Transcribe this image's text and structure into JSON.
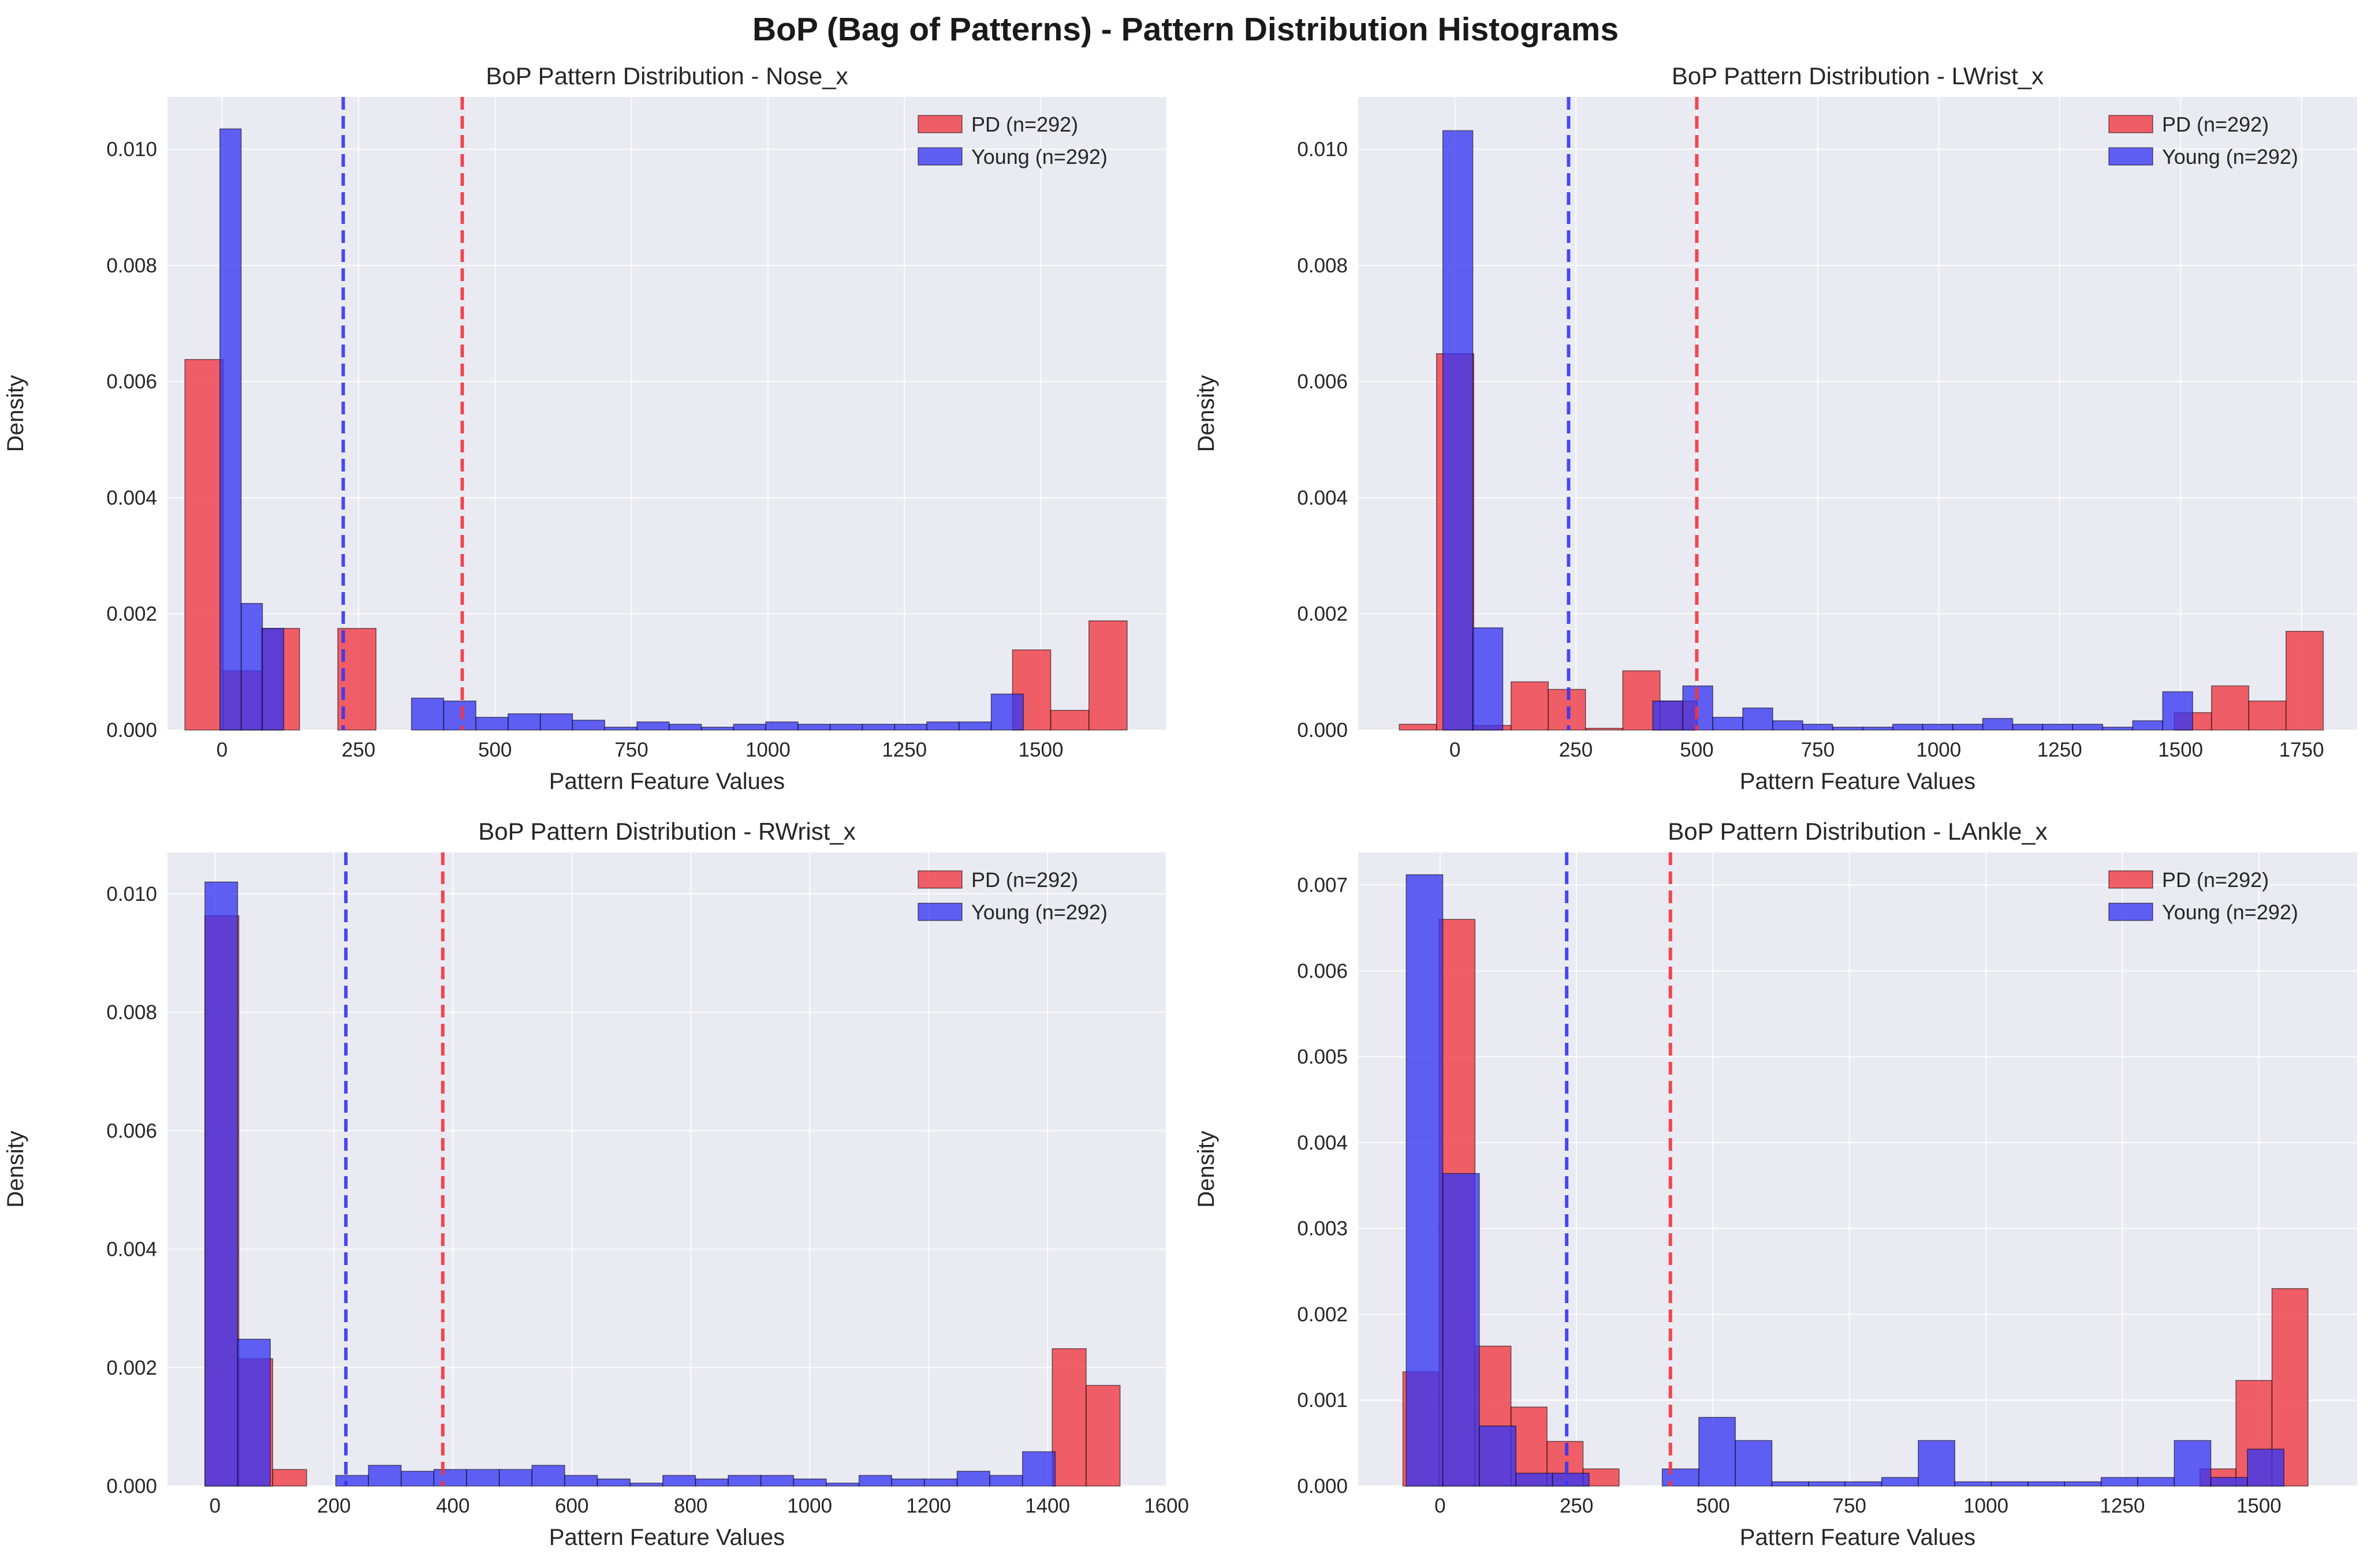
{
  "suptitle": "BoP (Bag of Patterns) - Pattern Distribution Histograms",
  "colors": {
    "pd": "#f0353f",
    "young": "#3636f2",
    "panel_bg": "#eaeaf2",
    "grid": "#ffffff"
  },
  "chart_data": [
    {
      "type": "histogram",
      "title": "BoP Pattern Distribution - Nose_x",
      "xlabel": "Pattern Feature Values",
      "ylabel": "Density",
      "xlim": [
        -100,
        1730
      ],
      "ylim": [
        0,
        0.0109
      ],
      "xticks": [
        0,
        250,
        500,
        750,
        1000,
        1250,
        1500
      ],
      "xtick_labels": [
        "0",
        "250",
        "500",
        "750",
        "1000",
        "1250",
        "1500"
      ],
      "yticks": [
        0,
        0.002,
        0.004,
        0.006,
        0.008,
        0.01
      ],
      "ytick_labels": [
        "0.000",
        "0.002",
        "0.004",
        "0.006",
        "0.008",
        "0.010"
      ],
      "legend": [
        "PD (n=292)",
        "Young (n=292)"
      ],
      "series": [
        {
          "name": "PD (n=292)",
          "color_key": "pd",
          "mean_line": 440,
          "bins": [
            {
              "x0": -68,
              "x1": 2,
              "h": 0.00638
            },
            {
              "x0": 2,
              "x1": 72,
              "h": 0.00102
            },
            {
              "x0": 72,
              "x1": 142,
              "h": 0.00175
            },
            {
              "x0": 212,
              "x1": 282,
              "h": 0.00175
            },
            {
              "x0": 1448,
              "x1": 1518,
              "h": 0.00138
            },
            {
              "x0": 1518,
              "x1": 1588,
              "h": 0.00034
            },
            {
              "x0": 1588,
              "x1": 1658,
              "h": 0.00188
            }
          ]
        },
        {
          "name": "Young (n=292)",
          "color_key": "young",
          "mean_line": 222,
          "bins": [
            {
              "x0": -4,
              "x1": 35,
              "h": 0.01035
            },
            {
              "x0": 35,
              "x1": 74,
              "h": 0.00218
            },
            {
              "x0": 74,
              "x1": 113,
              "h": 0.00175
            },
            {
              "x0": 347,
              "x1": 406,
              "h": 0.00055
            },
            {
              "x0": 406,
              "x1": 465,
              "h": 0.0005
            },
            {
              "x0": 465,
              "x1": 524,
              "h": 0.00022
            },
            {
              "x0": 524,
              "x1": 583,
              "h": 0.00028
            },
            {
              "x0": 583,
              "x1": 642,
              "h": 0.00028
            },
            {
              "x0": 642,
              "x1": 701,
              "h": 0.00017
            },
            {
              "x0": 701,
              "x1": 760,
              "h": 5e-05
            },
            {
              "x0": 760,
              "x1": 819,
              "h": 0.00014
            },
            {
              "x0": 819,
              "x1": 878,
              "h": 0.0001
            },
            {
              "x0": 878,
              "x1": 937,
              "h": 5e-05
            },
            {
              "x0": 937,
              "x1": 996,
              "h": 0.0001
            },
            {
              "x0": 996,
              "x1": 1055,
              "h": 0.00014
            },
            {
              "x0": 1055,
              "x1": 1114,
              "h": 0.0001
            },
            {
              "x0": 1114,
              "x1": 1173,
              "h": 0.0001
            },
            {
              "x0": 1173,
              "x1": 1232,
              "h": 0.0001
            },
            {
              "x0": 1232,
              "x1": 1291,
              "h": 0.0001
            },
            {
              "x0": 1291,
              "x1": 1350,
              "h": 0.00014
            },
            {
              "x0": 1350,
              "x1": 1409,
              "h": 0.00014
            },
            {
              "x0": 1409,
              "x1": 1468,
              "h": 0.00062
            }
          ]
        }
      ]
    },
    {
      "type": "histogram",
      "title": "BoP Pattern Distribution - LWrist_x",
      "xlabel": "Pattern Feature Values",
      "ylabel": "Density",
      "xlim": [
        -200,
        1865
      ],
      "ylim": [
        0,
        0.0109
      ],
      "xticks": [
        0,
        250,
        500,
        750,
        1000,
        1250,
        1500,
        1750
      ],
      "xtick_labels": [
        "0",
        "250",
        "500",
        "750",
        "1000",
        "1250",
        "1500",
        "1750"
      ],
      "yticks": [
        0,
        0.002,
        0.004,
        0.006,
        0.008,
        0.01
      ],
      "ytick_labels": [
        "0.000",
        "0.002",
        "0.004",
        "0.006",
        "0.008",
        "0.010"
      ],
      "legend": [
        "PD (n=292)",
        "Young (n=292)"
      ],
      "series": [
        {
          "name": "PD (n=292)",
          "color_key": "pd",
          "mean_line": 500,
          "bins": [
            {
              "x0": -115,
              "x1": -38,
              "h": 0.0001
            },
            {
              "x0": -38,
              "x1": 39,
              "h": 0.00648
            },
            {
              "x0": 39,
              "x1": 116,
              "h": 8e-05
            },
            {
              "x0": 116,
              "x1": 193,
              "h": 0.00083
            },
            {
              "x0": 193,
              "x1": 270,
              "h": 0.0007
            },
            {
              "x0": 270,
              "x1": 347,
              "h": 3e-05
            },
            {
              "x0": 347,
              "x1": 424,
              "h": 0.00102
            },
            {
              "x0": 424,
              "x1": 501,
              "h": 0.0005
            },
            {
              "x0": 1487,
              "x1": 1564,
              "h": 0.0003
            },
            {
              "x0": 1564,
              "x1": 1641,
              "h": 0.00076
            },
            {
              "x0": 1641,
              "x1": 1718,
              "h": 0.0005
            },
            {
              "x0": 1718,
              "x1": 1795,
              "h": 0.0017
            }
          ]
        },
        {
          "name": "Young (n=292)",
          "color_key": "young",
          "mean_line": 235,
          "bins": [
            {
              "x0": -25,
              "x1": 37,
              "h": 0.01032
            },
            {
              "x0": 37,
              "x1": 99,
              "h": 0.00176
            },
            {
              "x0": 409,
              "x1": 471,
              "h": 0.0005
            },
            {
              "x0": 471,
              "x1": 533,
              "h": 0.00076
            },
            {
              "x0": 533,
              "x1": 595,
              "h": 0.00022
            },
            {
              "x0": 595,
              "x1": 657,
              "h": 0.00038
            },
            {
              "x0": 657,
              "x1": 719,
              "h": 0.00016
            },
            {
              "x0": 719,
              "x1": 781,
              "h": 0.0001
            },
            {
              "x0": 781,
              "x1": 843,
              "h": 5e-05
            },
            {
              "x0": 843,
              "x1": 905,
              "h": 5e-05
            },
            {
              "x0": 905,
              "x1": 967,
              "h": 0.0001
            },
            {
              "x0": 967,
              "x1": 1029,
              "h": 0.0001
            },
            {
              "x0": 1029,
              "x1": 1091,
              "h": 0.0001
            },
            {
              "x0": 1091,
              "x1": 1153,
              "h": 0.0002
            },
            {
              "x0": 1153,
              "x1": 1215,
              "h": 0.0001
            },
            {
              "x0": 1215,
              "x1": 1277,
              "h": 0.0001
            },
            {
              "x0": 1277,
              "x1": 1339,
              "h": 0.0001
            },
            {
              "x0": 1339,
              "x1": 1401,
              "h": 5e-05
            },
            {
              "x0": 1401,
              "x1": 1463,
              "h": 0.00016
            },
            {
              "x0": 1463,
              "x1": 1525,
              "h": 0.00066
            }
          ]
        }
      ]
    },
    {
      "type": "histogram",
      "title": "BoP Pattern Distribution - RWrist_x",
      "xlabel": "Pattern Feature Values",
      "ylabel": "Density",
      "xlim": [
        -80,
        1600
      ],
      "ylim": [
        0,
        0.0107
      ],
      "xticks": [
        0,
        200,
        400,
        600,
        800,
        1000,
        1200,
        1400,
        1600
      ],
      "xtick_labels": [
        "0",
        "200",
        "400",
        "600",
        "800",
        "1000",
        "1200",
        "1400",
        "1600"
      ],
      "yticks": [
        0,
        0.002,
        0.004,
        0.006,
        0.008,
        0.01
      ],
      "ytick_labels": [
        "0.000",
        "0.002",
        "0.004",
        "0.006",
        "0.008",
        "0.010"
      ],
      "legend": [
        "PD (n=292)",
        "Young (n=292)"
      ],
      "series": [
        {
          "name": "PD (n=292)",
          "color_key": "pd",
          "mean_line": 383,
          "bins": [
            {
              "x0": -17,
              "x1": 40,
              "h": 0.00963
            },
            {
              "x0": 40,
              "x1": 97,
              "h": 0.00215
            },
            {
              "x0": 97,
              "x1": 154,
              "h": 0.00028
            },
            {
              "x0": 1408,
              "x1": 1465,
              "h": 0.00232
            },
            {
              "x0": 1465,
              "x1": 1522,
              "h": 0.0017
            }
          ]
        },
        {
          "name": "Young (n=292)",
          "color_key": "young",
          "mean_line": 220,
          "bins": [
            {
              "x0": -17,
              "x1": 38,
              "h": 0.0102
            },
            {
              "x0": 38,
              "x1": 93,
              "h": 0.00248
            },
            {
              "x0": 203,
              "x1": 258,
              "h": 0.00018
            },
            {
              "x0": 258,
              "x1": 313,
              "h": 0.00035
            },
            {
              "x0": 313,
              "x1": 368,
              "h": 0.00025
            },
            {
              "x0": 368,
              "x1": 423,
              "h": 0.00028
            },
            {
              "x0": 423,
              "x1": 478,
              "h": 0.00028
            },
            {
              "x0": 478,
              "x1": 533,
              "h": 0.00028
            },
            {
              "x0": 533,
              "x1": 588,
              "h": 0.00035
            },
            {
              "x0": 588,
              "x1": 643,
              "h": 0.00018
            },
            {
              "x0": 643,
              "x1": 698,
              "h": 0.00012
            },
            {
              "x0": 698,
              "x1": 753,
              "h": 5e-05
            },
            {
              "x0": 753,
              "x1": 808,
              "h": 0.00018
            },
            {
              "x0": 808,
              "x1": 863,
              "h": 0.00012
            },
            {
              "x0": 863,
              "x1": 918,
              "h": 0.00018
            },
            {
              "x0": 918,
              "x1": 973,
              "h": 0.00018
            },
            {
              "x0": 973,
              "x1": 1028,
              "h": 0.00012
            },
            {
              "x0": 1028,
              "x1": 1083,
              "h": 5e-05
            },
            {
              "x0": 1083,
              "x1": 1138,
              "h": 0.00018
            },
            {
              "x0": 1138,
              "x1": 1193,
              "h": 0.00012
            },
            {
              "x0": 1193,
              "x1": 1248,
              "h": 0.00012
            },
            {
              "x0": 1248,
              "x1": 1303,
              "h": 0.00025
            },
            {
              "x0": 1303,
              "x1": 1358,
              "h": 0.00018
            },
            {
              "x0": 1358,
              "x1": 1413,
              "h": 0.00058
            }
          ]
        }
      ]
    },
    {
      "type": "histogram",
      "title": "BoP Pattern Distribution - LAnkle_x",
      "xlabel": "Pattern Feature Values",
      "ylabel": "Density",
      "xlim": [
        -150,
        1680
      ],
      "ylim": [
        0,
        0.00738
      ],
      "xticks": [
        0,
        250,
        500,
        750,
        1000,
        1250,
        1500
      ],
      "xtick_labels": [
        "0",
        "250",
        "500",
        "750",
        "1000",
        "1250",
        "1500"
      ],
      "yticks": [
        0,
        0.001,
        0.002,
        0.003,
        0.004,
        0.005,
        0.006,
        0.007
      ],
      "ytick_labels": [
        "0.000",
        "0.001",
        "0.002",
        "0.003",
        "0.004",
        "0.005",
        "0.006",
        "0.007"
      ],
      "legend": [
        "PD (n=292)",
        "Young (n=292)"
      ],
      "series": [
        {
          "name": "PD (n=292)",
          "color_key": "pd",
          "mean_line": 422,
          "bins": [
            {
              "x0": -68,
              "x1": -2,
              "h": 0.00133
            },
            {
              "x0": -2,
              "x1": 64,
              "h": 0.0066
            },
            {
              "x0": 64,
              "x1": 130,
              "h": 0.00163
            },
            {
              "x0": 130,
              "x1": 196,
              "h": 0.00092
            },
            {
              "x0": 196,
              "x1": 262,
              "h": 0.00052
            },
            {
              "x0": 262,
              "x1": 328,
              "h": 0.0002
            },
            {
              "x0": 1392,
              "x1": 1458,
              "h": 0.0002
            },
            {
              "x0": 1458,
              "x1": 1524,
              "h": 0.00123
            },
            {
              "x0": 1524,
              "x1": 1590,
              "h": 0.0023
            }
          ]
        },
        {
          "name": "Young (n=292)",
          "color_key": "young",
          "mean_line": 232,
          "bins": [
            {
              "x0": -62,
              "x1": 5,
              "h": 0.00712
            },
            {
              "x0": 5,
              "x1": 72,
              "h": 0.00364
            },
            {
              "x0": 72,
              "x1": 139,
              "h": 0.0007
            },
            {
              "x0": 139,
              "x1": 206,
              "h": 0.00015
            },
            {
              "x0": 206,
              "x1": 273,
              "h": 0.00015
            },
            {
              "x0": 407,
              "x1": 474,
              "h": 0.0002
            },
            {
              "x0": 474,
              "x1": 541,
              "h": 0.0008
            },
            {
              "x0": 541,
              "x1": 608,
              "h": 0.00053
            },
            {
              "x0": 608,
              "x1": 675,
              "h": 5e-05
            },
            {
              "x0": 675,
              "x1": 742,
              "h": 5e-05
            },
            {
              "x0": 742,
              "x1": 809,
              "h": 5e-05
            },
            {
              "x0": 809,
              "x1": 876,
              "h": 0.0001
            },
            {
              "x0": 876,
              "x1": 943,
              "h": 0.00053
            },
            {
              "x0": 943,
              "x1": 1010,
              "h": 5e-05
            },
            {
              "x0": 1010,
              "x1": 1077,
              "h": 5e-05
            },
            {
              "x0": 1077,
              "x1": 1144,
              "h": 5e-05
            },
            {
              "x0": 1144,
              "x1": 1211,
              "h": 5e-05
            },
            {
              "x0": 1211,
              "x1": 1278,
              "h": 0.0001
            },
            {
              "x0": 1278,
              "x1": 1345,
              "h": 0.0001
            },
            {
              "x0": 1345,
              "x1": 1412,
              "h": 0.00053
            },
            {
              "x0": 1412,
              "x1": 1479,
              "h": 0.0001
            },
            {
              "x0": 1479,
              "x1": 1546,
              "h": 0.00043
            }
          ]
        }
      ]
    }
  ]
}
